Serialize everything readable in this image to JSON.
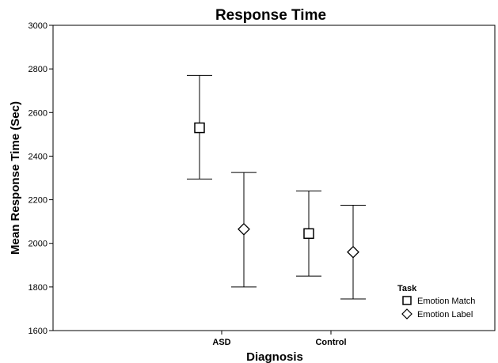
{
  "chart_data": {
    "type": "scatter",
    "title": "Response Time",
    "xlabel": "Diagnosis",
    "ylabel": "Mean Response Time (Sec)",
    "categories": [
      "ASD",
      "Control"
    ],
    "ylim": [
      1600,
      3000
    ],
    "yticks": [
      1600,
      1800,
      2000,
      2200,
      2400,
      2600,
      2800,
      3000
    ],
    "grid": false,
    "legend": {
      "title": "Task",
      "position": "bottom-right"
    },
    "series": [
      {
        "name": "Emotion Match",
        "marker": "square",
        "values": [
          2530,
          2045
        ],
        "error_low": [
          2295,
          1850
        ],
        "error_high": [
          2770,
          2240
        ]
      },
      {
        "name": "Emotion Label",
        "marker": "diamond",
        "values": [
          2065,
          1960
        ],
        "error_low": [
          1800,
          1745
        ],
        "error_high": [
          2325,
          2175
        ]
      }
    ]
  }
}
